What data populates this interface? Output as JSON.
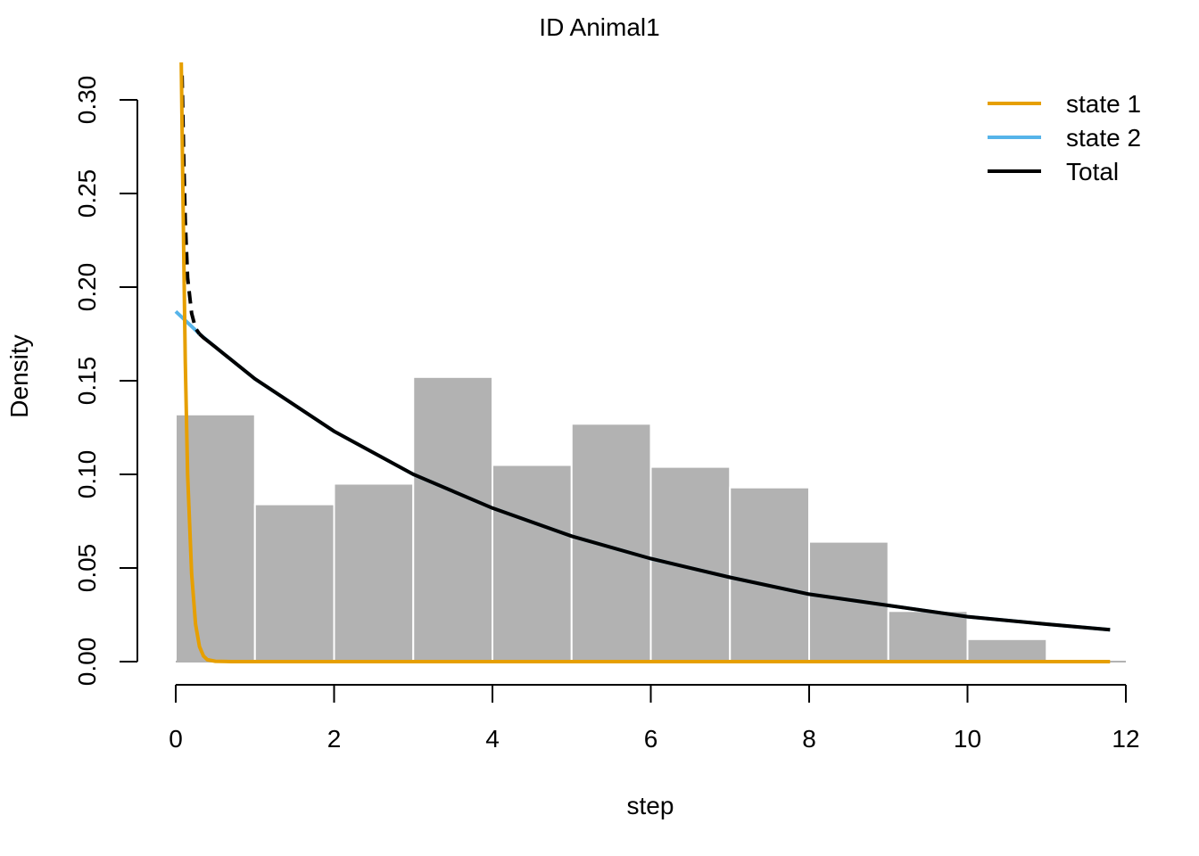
{
  "chart_data": {
    "type": "histogram",
    "title": "ID Animal1",
    "xlabel": "step",
    "ylabel": "Density",
    "xlim": [
      0,
      12
    ],
    "ylim": [
      0,
      0.3
    ],
    "x_ticks": [
      "0",
      "2",
      "4",
      "6",
      "8",
      "10",
      "12"
    ],
    "y_ticks": [
      "0.00",
      "0.05",
      "0.10",
      "0.15",
      "0.20",
      "0.25",
      "0.30"
    ],
    "bins": [
      {
        "x0": 0,
        "x1": 1,
        "density": 0.132
      },
      {
        "x0": 1,
        "x1": 2,
        "density": 0.084
      },
      {
        "x0": 2,
        "x1": 3,
        "density": 0.095
      },
      {
        "x0": 3,
        "x1": 4,
        "density": 0.152
      },
      {
        "x0": 4,
        "x1": 5,
        "density": 0.105
      },
      {
        "x0": 5,
        "x1": 6,
        "density": 0.127
      },
      {
        "x0": 6,
        "x1": 7,
        "density": 0.104
      },
      {
        "x0": 7,
        "x1": 8,
        "density": 0.093
      },
      {
        "x0": 8,
        "x1": 9,
        "density": 0.064
      },
      {
        "x0": 9,
        "x1": 10,
        "density": 0.027
      },
      {
        "x0": 10,
        "x1": 11,
        "density": 0.012
      }
    ],
    "bar_color": "#b2b2b2",
    "series": [
      {
        "name": "state 1",
        "color": "#E69F00",
        "x": [
          0.07,
          0.085,
          0.1,
          0.12,
          0.15,
          0.2,
          0.25,
          0.3,
          0.35,
          0.4,
          0.5,
          0.7,
          1,
          2,
          4,
          6,
          8,
          10,
          11.8
        ],
        "y": [
          0.32,
          0.27,
          0.22,
          0.16,
          0.1,
          0.047,
          0.02,
          0.008,
          0.003,
          0.001,
          0.0002,
          0,
          0,
          0,
          0,
          0,
          0,
          0,
          0
        ]
      },
      {
        "name": "state 2",
        "color": "#56B4E9",
        "x": [
          0.0,
          0.1,
          0.2,
          0.3,
          0.5,
          1,
          2,
          3,
          4,
          5,
          6,
          7,
          8,
          9,
          10,
          11,
          11.8
        ],
        "y": [
          0.187,
          0.183,
          0.179,
          0.175,
          0.168,
          0.151,
          0.123,
          0.1,
          0.082,
          0.067,
          0.055,
          0.045,
          0.036,
          0.03,
          0.024,
          0.02,
          0.017
        ]
      },
      {
        "name": "Total",
        "color": "#000000",
        "x": [
          0.08,
          0.1,
          0.12,
          0.15,
          0.2,
          0.25,
          0.3,
          0.35,
          0.5,
          1,
          2,
          3,
          4,
          5,
          6,
          7,
          8,
          9,
          10,
          11,
          11.8
        ],
        "y": [
          0.313,
          0.27,
          0.235,
          0.205,
          0.186,
          0.178,
          0.175,
          0.173,
          0.168,
          0.151,
          0.123,
          0.1,
          0.082,
          0.067,
          0.055,
          0.045,
          0.036,
          0.03,
          0.024,
          0.02,
          0.017
        ]
      }
    ],
    "total_dashed_below_x": 0.3,
    "legend": {
      "position": "top-right",
      "entries": [
        {
          "label": "state 1",
          "color": "#E69F00"
        },
        {
          "label": "state 2",
          "color": "#56B4E9"
        },
        {
          "label": "Total",
          "color": "#000000"
        }
      ]
    }
  }
}
